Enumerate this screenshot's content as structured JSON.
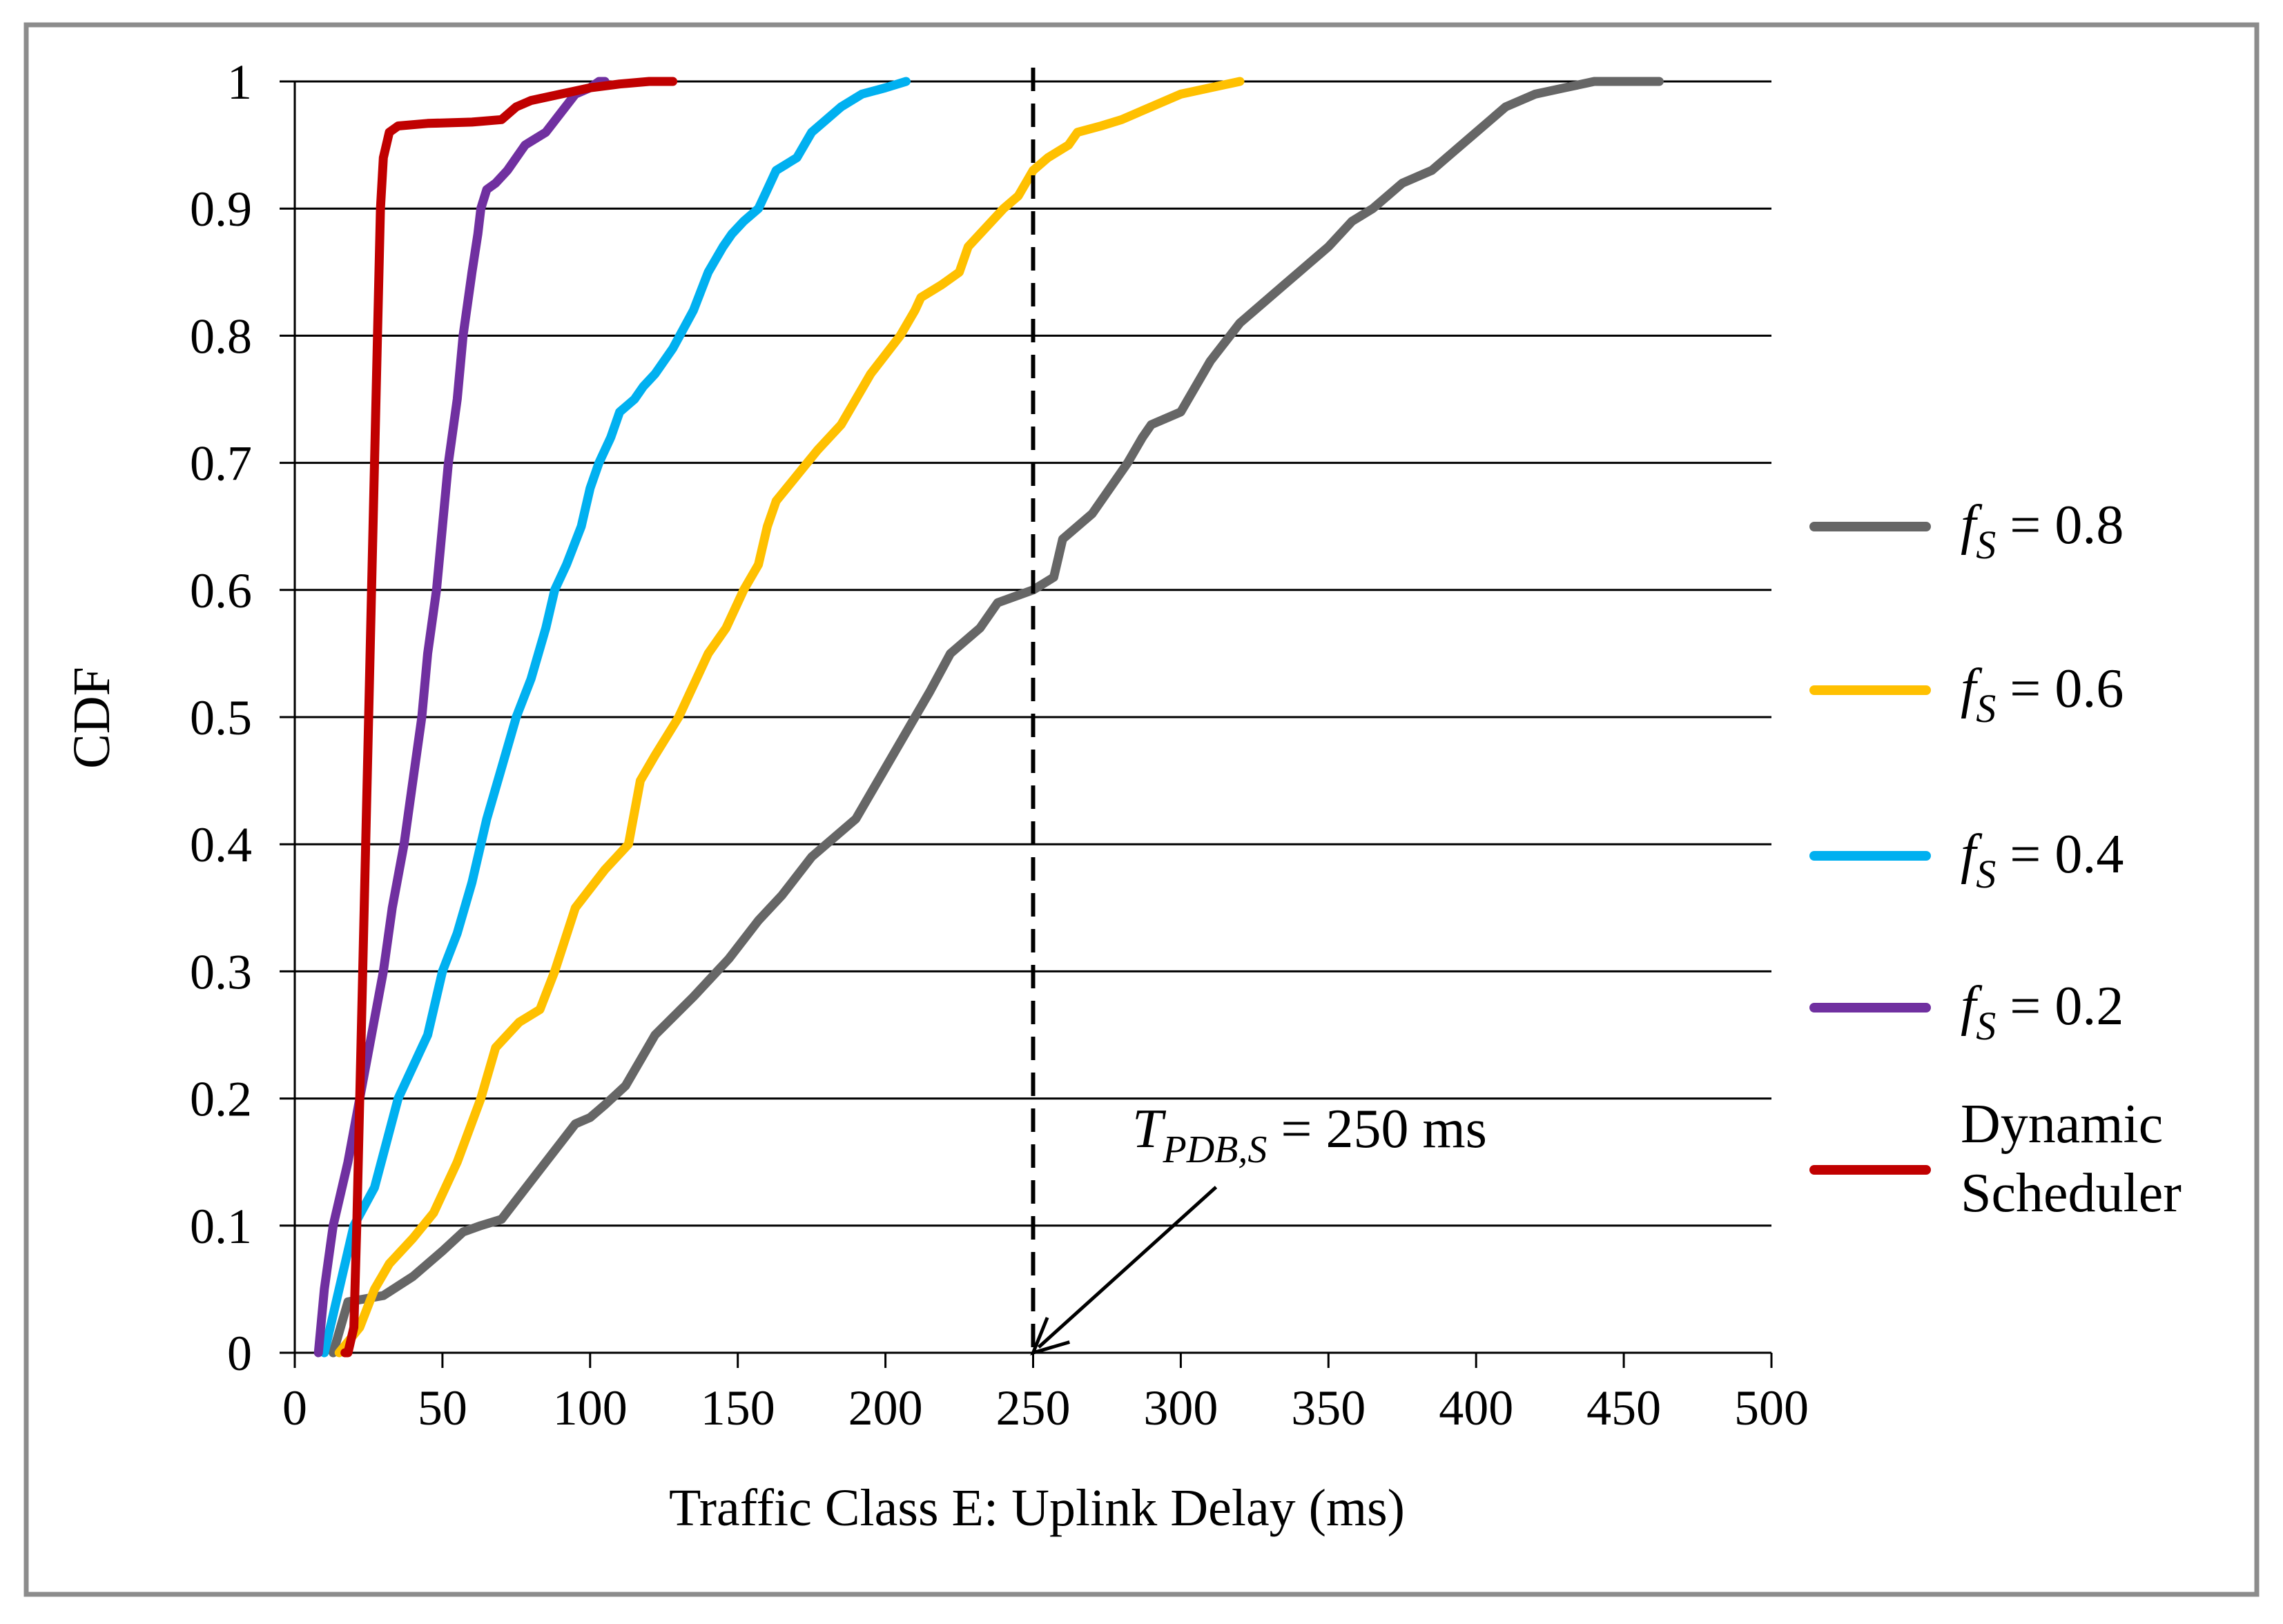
{
  "chart_data": {
    "type": "line",
    "title": "",
    "xlabel": "Traffic Class E: Uplink Delay (ms)",
    "ylabel": "CDF",
    "xlim": [
      0,
      500
    ],
    "ylim": [
      0,
      1
    ],
    "grid": "horizontal",
    "legend_position": "right",
    "x_ticks": [
      "0",
      "50",
      "100",
      "150",
      "200",
      "250",
      "300",
      "350",
      "400",
      "450",
      "500"
    ],
    "y_ticks": [
      "0",
      "0.1",
      "0.2",
      "0.3",
      "0.4",
      "0.5",
      "0.6",
      "0.7",
      "0.8",
      "0.9",
      "1"
    ],
    "series": [
      {
        "name": "f_S = 0.8",
        "legend_var": "f",
        "legend_sub": "S",
        "legend_value": " = 0.8",
        "color": "#666666",
        "x": [
          13,
          18,
          30,
          40,
          50,
          57,
          63,
          70,
          75,
          85,
          95,
          100,
          105,
          112,
          122,
          135,
          147,
          157,
          165,
          175,
          180,
          190,
          195,
          200,
          210,
          215,
          222,
          232,
          238,
          250,
          257,
          260,
          270,
          282,
          287,
          290,
          300,
          310,
          320,
          325,
          335,
          340,
          350,
          358,
          365,
          375,
          385,
          390,
          400,
          410,
          420,
          430,
          440,
          462
        ],
        "y": [
          0,
          0.04,
          0.045,
          0.06,
          0.08,
          0.095,
          0.1,
          0.105,
          0.12,
          0.15,
          0.18,
          0.185,
          0.195,
          0.21,
          0.25,
          0.28,
          0.31,
          0.34,
          0.36,
          0.39,
          0.4,
          0.42,
          0.44,
          0.46,
          0.5,
          0.52,
          0.55,
          0.57,
          0.59,
          0.6,
          0.61,
          0.64,
          0.66,
          0.7,
          0.72,
          0.73,
          0.74,
          0.78,
          0.81,
          0.82,
          0.84,
          0.85,
          0.87,
          0.89,
          0.9,
          0.92,
          0.93,
          0.94,
          0.96,
          0.98,
          0.99,
          0.995,
          1.0,
          1.0
        ]
      },
      {
        "name": "f_S = 0.6",
        "legend_var": "f",
        "legend_sub": "S",
        "legend_value": " = 0.6",
        "color": "#FFC000",
        "x": [
          15,
          22,
          27,
          32,
          40,
          47,
          55,
          63,
          68,
          76,
          83,
          88,
          95,
          105,
          113,
          117,
          122,
          130,
          140,
          146,
          152,
          157,
          160,
          163,
          170,
          177,
          185,
          195,
          205,
          210,
          212,
          219,
          225,
          228,
          240,
          245,
          250,
          255,
          262,
          265,
          273,
          280,
          290,
          300,
          310,
          320
        ],
        "y": [
          0,
          0.02,
          0.05,
          0.07,
          0.09,
          0.11,
          0.15,
          0.2,
          0.24,
          0.26,
          0.27,
          0.3,
          0.35,
          0.38,
          0.4,
          0.45,
          0.47,
          0.5,
          0.55,
          0.57,
          0.6,
          0.62,
          0.65,
          0.67,
          0.69,
          0.71,
          0.73,
          0.77,
          0.8,
          0.82,
          0.83,
          0.84,
          0.85,
          0.87,
          0.9,
          0.91,
          0.93,
          0.94,
          0.95,
          0.96,
          0.965,
          0.97,
          0.98,
          0.99,
          0.995,
          1.0
        ]
      },
      {
        "name": "f_S = 0.4",
        "legend_var": "f",
        "legend_sub": "S",
        "legend_value": " = 0.4",
        "color": "#00B0F0",
        "x": [
          10,
          15,
          20,
          27,
          35,
          45,
          50,
          55,
          60,
          65,
          70,
          75,
          80,
          85,
          88,
          92,
          97,
          100,
          103,
          107,
          110,
          115,
          118,
          122,
          128,
          135,
          140,
          145,
          148,
          152,
          157,
          160,
          163,
          170,
          175,
          180,
          185,
          192,
          200,
          207
        ],
        "y": [
          0,
          0.05,
          0.1,
          0.13,
          0.2,
          0.25,
          0.3,
          0.33,
          0.37,
          0.42,
          0.46,
          0.5,
          0.53,
          0.57,
          0.6,
          0.62,
          0.65,
          0.68,
          0.7,
          0.72,
          0.74,
          0.75,
          0.76,
          0.77,
          0.79,
          0.82,
          0.85,
          0.87,
          0.88,
          0.89,
          0.9,
          0.915,
          0.93,
          0.94,
          0.96,
          0.97,
          0.98,
          0.99,
          0.995,
          1.0
        ]
      },
      {
        "name": "f_S = 0.2",
        "legend_var": "f",
        "legend_sub": "S",
        "legend_value": " = 0.2",
        "color": "#7030A0",
        "x": [
          8,
          10,
          13,
          18,
          22,
          26,
          30,
          33,
          37,
          40,
          43,
          45,
          48,
          50,
          52,
          55,
          57,
          60,
          62,
          63,
          65,
          68,
          72,
          78,
          85,
          90,
          95,
          100,
          103,
          105
        ],
        "y": [
          0,
          0.05,
          0.1,
          0.15,
          0.2,
          0.25,
          0.3,
          0.35,
          0.4,
          0.45,
          0.5,
          0.55,
          0.6,
          0.65,
          0.7,
          0.75,
          0.8,
          0.85,
          0.88,
          0.9,
          0.915,
          0.92,
          0.93,
          0.95,
          0.96,
          0.975,
          0.99,
          0.995,
          1.0,
          1.0
        ]
      },
      {
        "name": "Dynamic Scheduler",
        "legend_label_lines": [
          "Dynamic",
          "Scheduler"
        ],
        "color": "#C00000",
        "x": [
          17,
          18,
          20,
          21,
          22,
          23,
          24,
          25,
          26,
          27,
          28,
          29,
          30,
          32,
          35,
          45,
          60,
          70,
          75,
          80,
          90,
          100,
          110,
          120,
          128
        ],
        "y": [
          0,
          0.0,
          0.02,
          0.1,
          0.2,
          0.3,
          0.4,
          0.5,
          0.6,
          0.7,
          0.8,
          0.9,
          0.94,
          0.96,
          0.965,
          0.967,
          0.968,
          0.97,
          0.98,
          0.985,
          0.99,
          0.995,
          0.998,
          1.0,
          1.0
        ]
      }
    ],
    "annotations": [
      {
        "type": "vertical_line",
        "x": 250,
        "style": "dashed",
        "label_main": "T",
        "label_sub": "PDB,S",
        "label_value": " = 250 ms",
        "arrow_to": [
          250,
          0
        ]
      }
    ]
  }
}
